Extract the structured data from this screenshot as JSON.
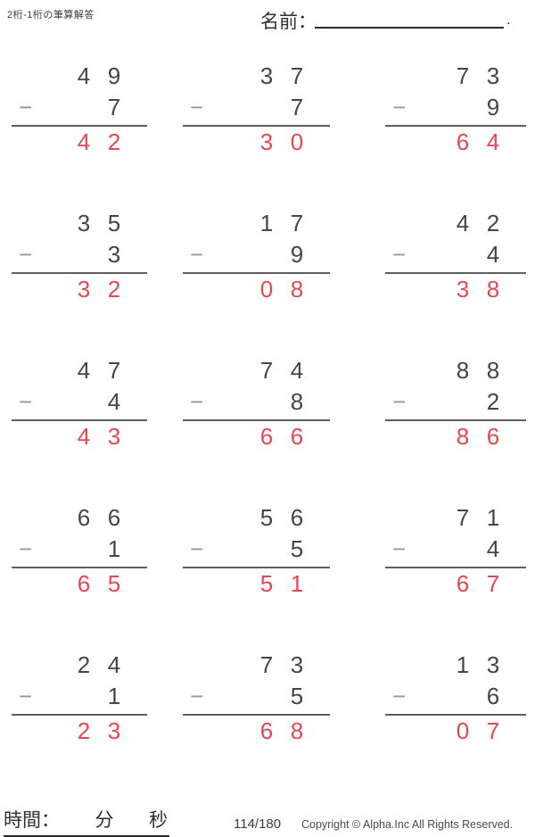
{
  "header": {
    "title": "2桁-1桁の筆算解答",
    "name_label": "名前：",
    "name_line_period": "."
  },
  "operator": "−",
  "problems": [
    {
      "minuend": "49",
      "subtrahend": "7",
      "answer": "42"
    },
    {
      "minuend": "37",
      "subtrahend": "7",
      "answer": "30"
    },
    {
      "minuend": "73",
      "subtrahend": "9",
      "answer": "64"
    },
    {
      "minuend": "35",
      "subtrahend": "3",
      "answer": "32"
    },
    {
      "minuend": "17",
      "subtrahend": "9",
      "answer": "08"
    },
    {
      "minuend": "42",
      "subtrahend": "4",
      "answer": "38"
    },
    {
      "minuend": "47",
      "subtrahend": "4",
      "answer": "43"
    },
    {
      "minuend": "74",
      "subtrahend": "8",
      "answer": "66"
    },
    {
      "minuend": "88",
      "subtrahend": "2",
      "answer": "86"
    },
    {
      "minuend": "66",
      "subtrahend": "1",
      "answer": "65"
    },
    {
      "minuend": "56",
      "subtrahend": "5",
      "answer": "51"
    },
    {
      "minuend": "71",
      "subtrahend": "4",
      "answer": "67"
    },
    {
      "minuend": "24",
      "subtrahend": "1",
      "answer": "23"
    },
    {
      "minuend": "73",
      "subtrahend": "5",
      "answer": "68"
    },
    {
      "minuend": "13",
      "subtrahend": "6",
      "answer": "07"
    }
  ],
  "footer": {
    "time_label": "時間：",
    "minutes_label": "分",
    "seconds_label": "秒",
    "page": "114/180",
    "copyright": "Copyright © Alpha.Inc All Rights Reserved."
  },
  "colors": {
    "answer_red": "#e8474f",
    "digit": "#454545",
    "rule": "#5f5f5f"
  }
}
